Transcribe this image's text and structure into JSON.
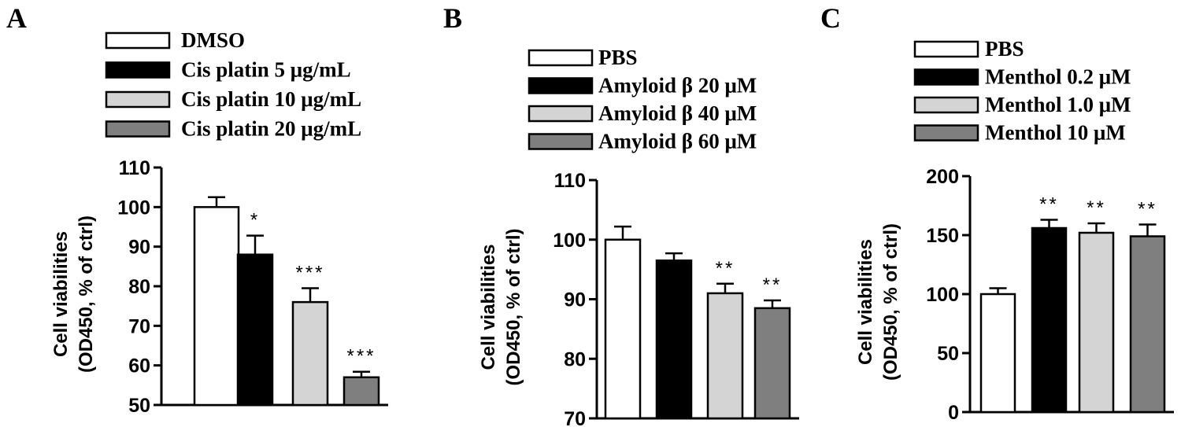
{
  "chart_data": [
    {
      "panel_letter": "A",
      "type": "bar",
      "ylabel": [
        "Cell viabilities",
        "(OD450, % of ctrl)"
      ],
      "ylim": [
        50,
        110
      ],
      "yticks": [
        50,
        60,
        70,
        80,
        90,
        100,
        110
      ],
      "series": [
        {
          "name": "DMSO",
          "value": 100,
          "error": 2.5,
          "sig": "",
          "color": "#ffffff"
        },
        {
          "name": "Cis platin 5 μg/mL",
          "value": 88,
          "error": 4.8,
          "sig": "*",
          "color": "#000000"
        },
        {
          "name": "Cis platin 10 μg/mL",
          "value": 76,
          "error": 3.5,
          "sig": "***",
          "color": "#d4d4d4"
        },
        {
          "name": "Cis platin 20 μg/mL",
          "value": 57,
          "error": 1.4,
          "sig": "***",
          "color": "#7f7f7f"
        }
      ]
    },
    {
      "panel_letter": "B",
      "type": "bar",
      "ylabel": [
        "Cell viabilities",
        "(OD450, % of ctrl)"
      ],
      "ylim": [
        70,
        110
      ],
      "yticks": [
        70,
        80,
        90,
        100,
        110
      ],
      "series": [
        {
          "name": "PBS",
          "value": 100,
          "error": 2.2,
          "sig": "",
          "color": "#ffffff"
        },
        {
          "name": "Amyloid β  20 μM",
          "value": 96.5,
          "error": 1.2,
          "sig": "",
          "color": "#000000"
        },
        {
          "name": "Amyloid β  40 μM",
          "value": 91,
          "error": 1.6,
          "sig": "**",
          "color": "#d4d4d4"
        },
        {
          "name": "Amyloid β  60 μM",
          "value": 88.5,
          "error": 1.3,
          "sig": "**",
          "color": "#7f7f7f"
        }
      ]
    },
    {
      "panel_letter": "C",
      "type": "bar",
      "ylabel": [
        "Cell viabilities",
        "(OD450, % of ctrl)"
      ],
      "ylim": [
        0,
        200
      ],
      "yticks": [
        0,
        50,
        100,
        150,
        200
      ],
      "series": [
        {
          "name": "PBS",
          "value": 100,
          "error": 5,
          "sig": "",
          "color": "#ffffff"
        },
        {
          "name": "Menthol 0.2 μM",
          "value": 156,
          "error": 7,
          "sig": "**",
          "color": "#000000"
        },
        {
          "name": "Menthol 1.0 μM",
          "value": 152,
          "error": 8,
          "sig": "**",
          "color": "#d4d4d4"
        },
        {
          "name": "Menthol 10 μM",
          "value": 149,
          "error": 10,
          "sig": "**",
          "color": "#7f7f7f"
        }
      ]
    }
  ]
}
